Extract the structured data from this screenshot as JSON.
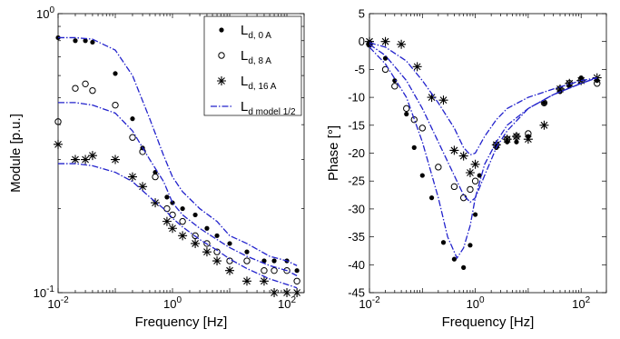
{
  "chart_data": [
    {
      "type": "scatter",
      "xscale": "log",
      "yscale": "log",
      "xlim": [
        0.01,
        200
      ],
      "ylim": [
        0.1,
        1
      ],
      "xlabel": "Frequency [Hz]",
      "ylabel": "Module [p.u.]",
      "xticks": [
        {
          "value": 0.01,
          "base": "10",
          "exp": "-2"
        },
        {
          "value": 1,
          "base": "10",
          "exp": "0"
        },
        {
          "value": 100,
          "base": "10",
          "exp": "2"
        }
      ],
      "yticks": [
        {
          "value": 0.1,
          "base": "10",
          "exp": "-1"
        },
        {
          "value": 1,
          "base": "10",
          "exp": "0"
        }
      ],
      "grid": false,
      "legend_position": "top-right",
      "series": [
        {
          "name": "L",
          "subscript": "d, 0 A",
          "marker": "dot",
          "color": "#000000",
          "x": [
            0.01,
            0.02,
            0.03,
            0.04,
            0.1,
            0.2,
            0.3,
            0.5,
            0.8,
            1.0,
            1.5,
            2.5,
            4,
            6,
            10,
            20,
            40,
            60,
            100,
            150
          ],
          "y": [
            0.82,
            0.8,
            0.8,
            0.79,
            0.61,
            0.42,
            0.33,
            0.27,
            0.22,
            0.21,
            0.2,
            0.19,
            0.17,
            0.16,
            0.15,
            0.14,
            0.13,
            0.13,
            0.13,
            0.12
          ]
        },
        {
          "name": "L",
          "subscript": "d, 8 A",
          "marker": "circle",
          "color": "#000000",
          "x": [
            0.01,
            0.02,
            0.03,
            0.04,
            0.1,
            0.2,
            0.3,
            0.5,
            0.8,
            1.0,
            1.5,
            2.5,
            4,
            6,
            10,
            20,
            40,
            60,
            100,
            150
          ],
          "y": [
            0.41,
            0.54,
            0.56,
            0.53,
            0.47,
            0.36,
            0.32,
            0.26,
            0.2,
            0.19,
            0.18,
            0.16,
            0.15,
            0.14,
            0.13,
            0.13,
            0.12,
            0.12,
            0.12,
            0.11
          ]
        },
        {
          "name": "L",
          "subscript": "d, 16 A",
          "marker": "asterisk",
          "color": "#000000",
          "x": [
            0.01,
            0.02,
            0.03,
            0.04,
            0.1,
            0.2,
            0.3,
            0.5,
            0.8,
            1.0,
            1.5,
            2.5,
            4,
            6,
            10,
            20,
            40,
            60,
            100,
            150
          ],
          "y": [
            0.34,
            0.3,
            0.3,
            0.31,
            0.3,
            0.26,
            0.24,
            0.21,
            0.18,
            0.17,
            0.16,
            0.15,
            0.14,
            0.13,
            0.12,
            0.11,
            0.11,
            0.1,
            0.1,
            0.1
          ]
        },
        {
          "name": "L",
          "subscript": "d model 1/2",
          "marker": "none",
          "line": "dashdot",
          "color": "#2222cc",
          "curves": [
            {
              "x": [
                0.01,
                0.02,
                0.04,
                0.1,
                0.2,
                0.4,
                0.7,
                1,
                1.5,
                3,
                6,
                10,
                20,
                50,
                100,
                150
              ],
              "y": [
                0.82,
                0.82,
                0.81,
                0.74,
                0.6,
                0.42,
                0.31,
                0.26,
                0.23,
                0.2,
                0.18,
                0.16,
                0.15,
                0.135,
                0.13,
                0.125
              ]
            },
            {
              "x": [
                0.01,
                0.02,
                0.04,
                0.1,
                0.2,
                0.4,
                0.7,
                1,
                1.5,
                3,
                6,
                10,
                20,
                50,
                100,
                150
              ],
              "y": [
                0.48,
                0.48,
                0.47,
                0.44,
                0.38,
                0.3,
                0.25,
                0.21,
                0.19,
                0.17,
                0.155,
                0.145,
                0.135,
                0.125,
                0.12,
                0.115
              ]
            },
            {
              "x": [
                0.01,
                0.02,
                0.04,
                0.1,
                0.2,
                0.4,
                0.7,
                1,
                1.5,
                3,
                6,
                10,
                20,
                50,
                100,
                150
              ],
              "y": [
                0.29,
                0.29,
                0.285,
                0.27,
                0.25,
                0.22,
                0.2,
                0.185,
                0.172,
                0.155,
                0.142,
                0.132,
                0.122,
                0.112,
                0.107,
                0.104
              ]
            }
          ]
        }
      ]
    },
    {
      "type": "scatter",
      "xscale": "log",
      "yscale": "linear",
      "xlim": [
        0.01,
        300
      ],
      "ylim": [
        -45,
        5
      ],
      "xlabel": "Frequency [Hz]",
      "ylabel": "Phase [°]",
      "xticks": [
        {
          "value": 0.01,
          "base": "10",
          "exp": "-2"
        },
        {
          "value": 1,
          "base": "10",
          "exp": "0"
        },
        {
          "value": 100,
          "base": "10",
          "exp": "2"
        }
      ],
      "yticks": [
        5,
        0,
        -5,
        -10,
        -15,
        -20,
        -25,
        -30,
        -35,
        -40,
        -45
      ],
      "grid": false,
      "series": [
        {
          "name": "",
          "marker": "dot",
          "color": "#000000",
          "x": [
            0.01,
            0.02,
            0.03,
            0.05,
            0.07,
            0.1,
            0.15,
            0.25,
            0.4,
            0.6,
            0.8,
            1.0,
            1.2,
            2.5,
            4,
            6,
            10,
            20,
            40,
            60,
            100,
            200
          ],
          "y": [
            -0.5,
            -3,
            -7,
            -13,
            -19,
            -24,
            -28,
            -36,
            -39,
            -40.5,
            -36.5,
            -31,
            -24,
            -19,
            -18,
            -18,
            -17,
            -11,
            -9,
            -8,
            -6.5,
            -7
          ]
        },
        {
          "name": "",
          "marker": "circle",
          "color": "#000000",
          "x": [
            0.01,
            0.02,
            0.03,
            0.05,
            0.07,
            0.1,
            0.2,
            0.4,
            0.6,
            0.8,
            1.0,
            2.5,
            4,
            6,
            10,
            20,
            40,
            60,
            100,
            200
          ],
          "y": [
            -0.5,
            -5,
            -8,
            -12,
            -14,
            -15.5,
            -22.5,
            -26,
            -28,
            -26.5,
            -25,
            -18.5,
            -17.5,
            -17,
            -16.5,
            -11,
            -8.5,
            -7.5,
            -7,
            -7.5
          ]
        },
        {
          "name": "",
          "marker": "asterisk",
          "color": "#000000",
          "x": [
            0.01,
            0.02,
            0.04,
            0.08,
            0.15,
            0.25,
            0.4,
            0.6,
            0.8,
            1.0,
            2.5,
            4,
            6,
            10,
            20,
            40,
            60,
            100,
            200
          ],
          "y": [
            0,
            0,
            -0.5,
            -4.5,
            -10,
            -10.5,
            -19.5,
            -20.5,
            -23.5,
            -22,
            -18.5,
            -17.5,
            -17,
            -17.5,
            -15,
            -8.5,
            -7.5,
            -7,
            -6.5
          ]
        },
        {
          "name": "",
          "marker": "none",
          "line": "dashdot",
          "color": "#2222cc",
          "curves": [
            {
              "x": [
                0.01,
                0.02,
                0.05,
                0.1,
                0.2,
                0.3,
                0.45,
                0.6,
                0.8,
                1.0,
                1.5,
                2.5,
                4,
                10,
                30,
                100,
                200
              ],
              "y": [
                -1,
                -4,
                -10,
                -18,
                -28,
                -35,
                -38.8,
                -37,
                -33,
                -28,
                -22,
                -18,
                -15,
                -12,
                -9.5,
                -7.5,
                -6.5
              ]
            },
            {
              "x": [
                0.01,
                0.02,
                0.05,
                0.1,
                0.2,
                0.4,
                0.6,
                0.8,
                1.0,
                1.5,
                2.5,
                4,
                10,
                30,
                100,
                200
              ],
              "y": [
                -0.5,
                -2.5,
                -7,
                -12,
                -18,
                -24,
                -27.5,
                -28.8,
                -28,
                -24,
                -19,
                -16,
                -12,
                -9.5,
                -7.5,
                -6.5
              ]
            },
            {
              "x": [
                0.01,
                0.02,
                0.05,
                0.1,
                0.2,
                0.4,
                0.6,
                0.8,
                1.0,
                1.5,
                2.5,
                4,
                10,
                30,
                100,
                200
              ],
              "y": [
                -0.2,
                -1,
                -3.5,
                -7,
                -11,
                -15.5,
                -19,
                -20.3,
                -20,
                -17,
                -14,
                -12,
                -10,
                -8.5,
                -7,
                -6.5
              ]
            }
          ]
        }
      ]
    }
  ]
}
